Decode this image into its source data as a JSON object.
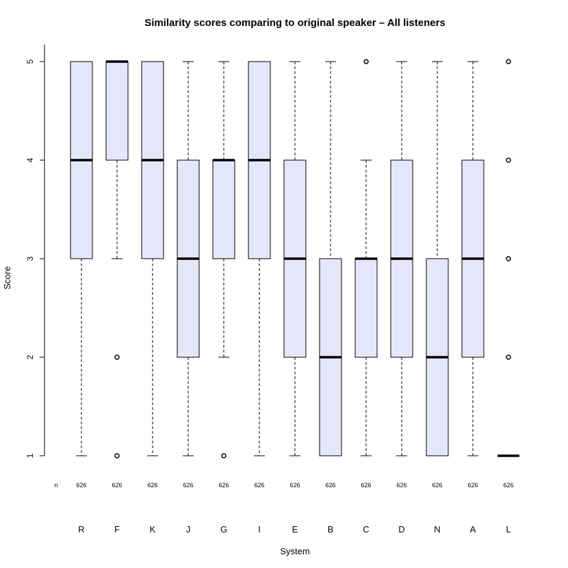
{
  "chart_data": {
    "type": "box",
    "title": "Similarity scores comparing to original speaker – All listeners",
    "xlabel": "System",
    "ylabel": "Score",
    "ylim": [
      1,
      5
    ],
    "yticks": [
      "1",
      "2",
      "3",
      "4",
      "5"
    ],
    "grid": false,
    "legend": "none",
    "box_fill": "#e6e6fa",
    "n_row_label": "n",
    "categories": [
      "R",
      "F",
      "K",
      "J",
      "G",
      "I",
      "E",
      "B",
      "C",
      "D",
      "N",
      "A",
      "L"
    ],
    "boxes": [
      {
        "name": "R",
        "whisker_low": 1,
        "q1": 3,
        "median": 4,
        "q3": 5,
        "whisker_high": 5,
        "outliers": [],
        "n": "626"
      },
      {
        "name": "F",
        "whisker_low": 3,
        "q1": 4,
        "median": 5,
        "q3": 5,
        "whisker_high": 5,
        "outliers": [
          2,
          1
        ],
        "n": "626"
      },
      {
        "name": "K",
        "whisker_low": 1,
        "q1": 3,
        "median": 4,
        "q3": 5,
        "whisker_high": 5,
        "outliers": [],
        "n": "626"
      },
      {
        "name": "J",
        "whisker_low": 1,
        "q1": 2,
        "median": 3,
        "q3": 4,
        "whisker_high": 5,
        "outliers": [],
        "n": "626"
      },
      {
        "name": "G",
        "whisker_low": 2,
        "q1": 3,
        "median": 4,
        "q3": 4,
        "whisker_high": 5,
        "outliers": [
          1
        ],
        "n": "626"
      },
      {
        "name": "I",
        "whisker_low": 1,
        "q1": 3,
        "median": 4,
        "q3": 5,
        "whisker_high": 5,
        "outliers": [],
        "n": "626"
      },
      {
        "name": "E",
        "whisker_low": 1,
        "q1": 2,
        "median": 3,
        "q3": 4,
        "whisker_high": 5,
        "outliers": [],
        "n": "626"
      },
      {
        "name": "B",
        "whisker_low": 1,
        "q1": 1,
        "median": 2,
        "q3": 3,
        "whisker_high": 5,
        "outliers": [],
        "n": "626"
      },
      {
        "name": "C",
        "whisker_low": 1,
        "q1": 2,
        "median": 3,
        "q3": 3,
        "whisker_high": 4,
        "outliers": [
          5
        ],
        "n": "626"
      },
      {
        "name": "D",
        "whisker_low": 1,
        "q1": 2,
        "median": 3,
        "q3": 4,
        "whisker_high": 5,
        "outliers": [],
        "n": "626"
      },
      {
        "name": "N",
        "whisker_low": 1,
        "q1": 1,
        "median": 2,
        "q3": 3,
        "whisker_high": 5,
        "outliers": [],
        "n": "626"
      },
      {
        "name": "A",
        "whisker_low": 1,
        "q1": 2,
        "median": 3,
        "q3": 4,
        "whisker_high": 5,
        "outliers": [],
        "n": "626"
      },
      {
        "name": "L",
        "whisker_low": 1,
        "q1": 1,
        "median": 1,
        "q3": 1,
        "whisker_high": 1,
        "outliers": [
          5,
          4,
          3,
          2
        ],
        "n": "626"
      }
    ]
  }
}
